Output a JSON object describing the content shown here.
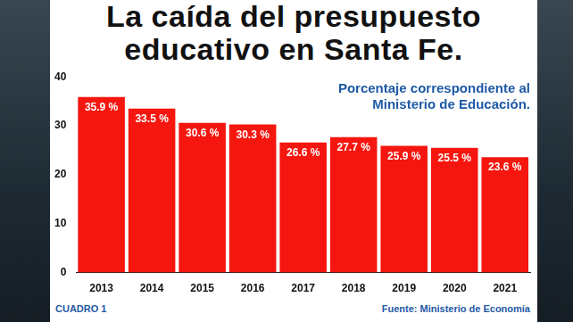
{
  "chart_data": {
    "type": "bar",
    "title": "La caída del presupuesto educativo en Santa Fe.",
    "annotation": "Porcentaje correspondiente al Ministerio de Educación.",
    "caption": "CUADRO 1",
    "source": "Fuente: Ministerio de Economía",
    "categories": [
      "2013",
      "2014",
      "2015",
      "2016",
      "2017",
      "2018",
      "2019",
      "2020",
      "2021"
    ],
    "values": [
      35.9,
      33.5,
      30.6,
      30.3,
      26.6,
      27.7,
      25.9,
      25.5,
      23.6
    ],
    "value_labels": [
      "35.9 %",
      "33.5 %",
      "30.6 %",
      "30.3 %",
      "26.6 %",
      "27.7 %",
      "25.9 %",
      "25.5 %",
      "23.6 %"
    ],
    "data_labels": true,
    "color": "#f5160f",
    "ylim": [
      0,
      40
    ],
    "yticks": [
      0,
      10,
      20,
      30,
      40
    ],
    "grid": false
  }
}
